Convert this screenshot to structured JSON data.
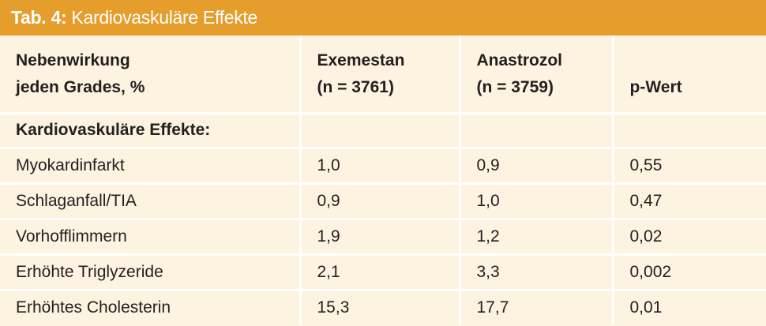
{
  "header": {
    "label": "Tab. 4:",
    "title": "Kardiovaskuläre Effekte"
  },
  "table": {
    "columns": [
      [
        "Nebenwirkung",
        "jeden Grades, %"
      ],
      [
        "Exemestan",
        "(n = 3761)"
      ],
      [
        "Anastrozol",
        "(n = 3759)"
      ],
      [
        "p-Wert"
      ]
    ],
    "section": "Kardiovaskuläre Effekte:",
    "rows": [
      [
        "Myokardinfarkt",
        "1,0",
        "0,9",
        "0,55"
      ],
      [
        "Schlaganfall/TIA",
        "0,9",
        "1,0",
        "0,47"
      ],
      [
        "Vorhofflimmern",
        "1,9",
        "1,2",
        "0,02"
      ],
      [
        "Erhöhte Triglyzeride",
        "2,1",
        "3,3",
        "0,002"
      ],
      [
        "Erhöhtes Cholesterin",
        "15,3",
        "17,7",
        "0,01"
      ]
    ]
  }
}
